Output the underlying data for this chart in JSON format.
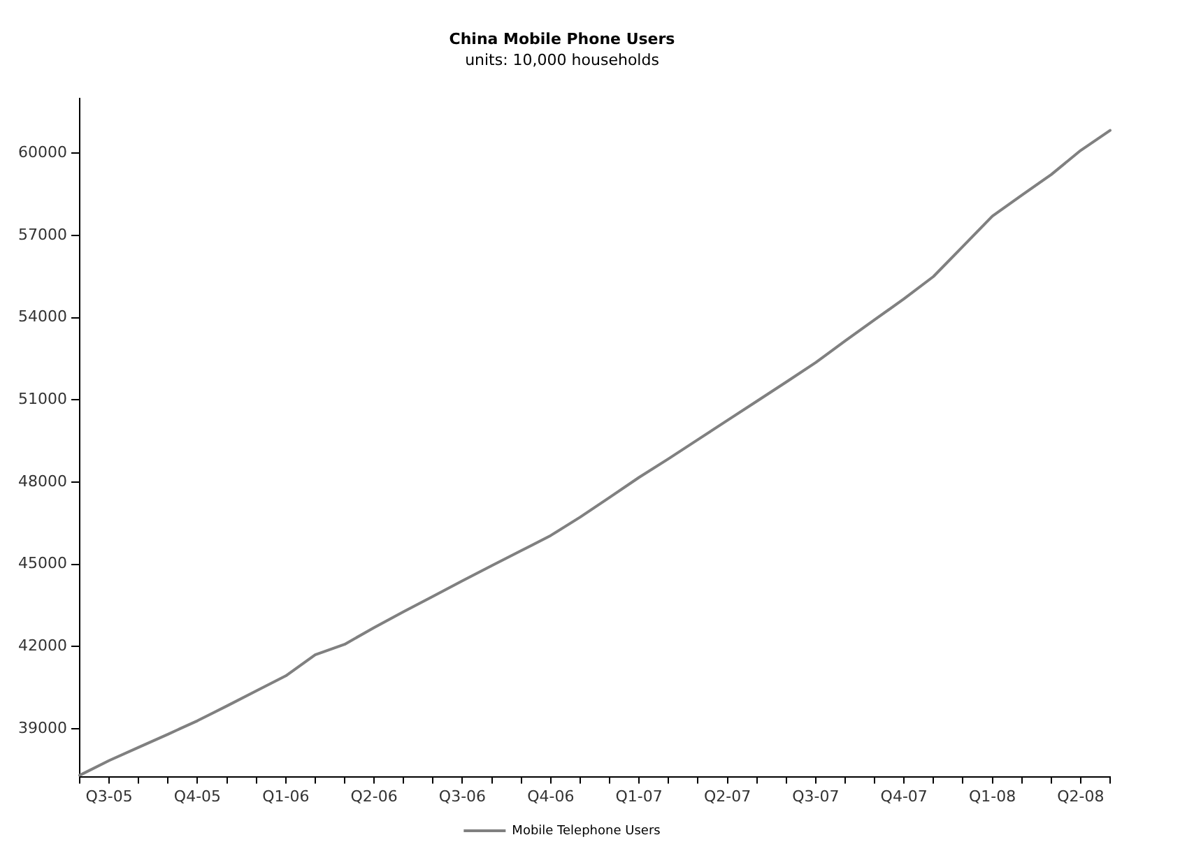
{
  "chart_data": {
    "type": "line",
    "title": "China Mobile Phone Users",
    "subtitle": "units: 10,000 households",
    "categories": [
      null,
      "Q3-05",
      null,
      null,
      "Q4-05",
      null,
      null,
      "Q1-06",
      null,
      null,
      "Q2-06",
      null,
      null,
      "Q3-06",
      null,
      null,
      "Q4-06",
      null,
      null,
      "Q1-07",
      null,
      null,
      "Q2-07",
      null,
      null,
      "Q3-07",
      null,
      null,
      "Q4-07",
      null,
      null,
      "Q1-08",
      null,
      null,
      "Q2-08",
      null
    ],
    "series": [
      {
        "name": "Mobile Telephone Users",
        "color": "#808080",
        "values": [
          37300,
          37840,
          38320,
          38800,
          39290,
          39830,
          40380,
          40930,
          41700,
          42080,
          42690,
          43270,
          43830,
          44400,
          44950,
          45500,
          46050,
          46720,
          47440,
          48170,
          48850,
          49550,
          50250,
          50950,
          51650,
          52360,
          53150,
          53920,
          54690,
          55500,
          56600,
          57700,
          58470,
          59220,
          60100,
          60830
        ]
      }
    ],
    "ylim": [
      37250,
      62000
    ],
    "yticks": [
      39000,
      42000,
      45000,
      48000,
      51000,
      54000,
      57000,
      60000
    ],
    "grid": false,
    "legend": "bottom",
    "marker": "none",
    "line_style": "solid"
  }
}
